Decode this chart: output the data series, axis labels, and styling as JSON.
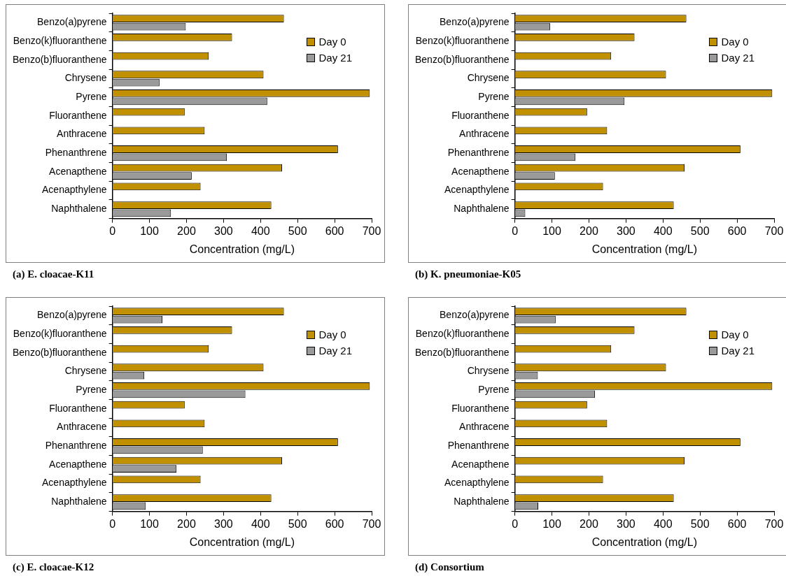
{
  "chart_data": [
    {
      "type": "bar",
      "orientation": "horizontal",
      "title": "(a) E. cloacae-K11",
      "xlabel": "Concentration (mg/L)",
      "categories": [
        "Benzo(a)pyrene",
        "Benzo(k)fluoranthene",
        "Benzo(b)fluoranthene",
        "Chrysene",
        "Pyrene",
        "Fluoranthene",
        "Anthracene",
        "Phenanthrene",
        "Acenapthene",
        "Acenapthylene",
        "Naphthalene"
      ],
      "series": [
        {
          "name": "Day 0",
          "color": "#c09000",
          "values": [
            463,
            323,
            260,
            408,
            695,
            195,
            249,
            609,
            458,
            238,
            429
          ]
        },
        {
          "name": "Day 21",
          "color": "#9a9a9a",
          "values": [
            198,
            0,
            0,
            127,
            418,
            0,
            0,
            309,
            214,
            0,
            158
          ]
        }
      ],
      "xlim": [
        0,
        700
      ],
      "xticks": [
        0,
        100,
        200,
        300,
        400,
        500,
        600,
        700
      ],
      "grid": false,
      "legend": "top right"
    },
    {
      "type": "bar",
      "orientation": "horizontal",
      "title": "(b) K. pneumoniae-K05",
      "xlabel": "Concentration (mg/L)",
      "categories": [
        "Benzo(a)pyrene",
        "Benzo(k)fluoranthene",
        "Benzo(b)fluoranthene",
        "Chrysene",
        "Pyrene",
        "Fluoranthene",
        "Anthracene",
        "Phenanthrene",
        "Acenapthene",
        "Acenapthylene",
        "Naphthalene"
      ],
      "series": [
        {
          "name": "Day 0",
          "color": "#c09000",
          "values": [
            463,
            323,
            260,
            408,
            695,
            195,
            249,
            609,
            458,
            238,
            429
          ]
        },
        {
          "name": "Day 21",
          "color": "#9a9a9a",
          "values": [
            95,
            0,
            0,
            0,
            296,
            0,
            0,
            163,
            108,
            0,
            28
          ]
        }
      ],
      "xlim": [
        0,
        700
      ],
      "xticks": [
        0,
        100,
        200,
        300,
        400,
        500,
        600,
        700
      ],
      "grid": false,
      "legend": "top right"
    },
    {
      "type": "bar",
      "orientation": "horizontal",
      "title": "(c) E. cloacae-K12",
      "xlabel": "Concentration (mg/L)",
      "categories": [
        "Benzo(a)pyrene",
        "Benzo(k)fluoranthene",
        "Benzo(b)fluoranthene",
        "Chrysene",
        "Pyrene",
        "Fluoranthene",
        "Anthracene",
        "Phenanthrene",
        "Acenapthene",
        "Acenapthylene",
        "Naphthalene"
      ],
      "series": [
        {
          "name": "Day 0",
          "color": "#c09000",
          "values": [
            463,
            323,
            260,
            408,
            695,
            195,
            249,
            609,
            458,
            238,
            429
          ]
        },
        {
          "name": "Day 21",
          "color": "#9a9a9a",
          "values": [
            135,
            0,
            0,
            86,
            359,
            0,
            0,
            244,
            173,
            0,
            90
          ]
        }
      ],
      "xlim": [
        0,
        700
      ],
      "xticks": [
        0,
        100,
        200,
        300,
        400,
        500,
        600,
        700
      ],
      "grid": false,
      "legend": "top right"
    },
    {
      "type": "bar",
      "orientation": "horizontal",
      "title": "(d) Consortium",
      "xlabel": "Concentration (mg/L)",
      "categories": [
        "Benzo(a)pyrene",
        "Benzo(k)fluoranthene",
        "Benzo(b)fluoranthene",
        "Chrysene",
        "Pyrene",
        "Fluoranthene",
        "Anthracene",
        "Phenanthrene",
        "Acenapthene",
        "Acenapthylene",
        "Naphthalene"
      ],
      "series": [
        {
          "name": "Day 0",
          "color": "#c09000",
          "values": [
            463,
            323,
            260,
            408,
            695,
            195,
            249,
            609,
            458,
            238,
            429
          ]
        },
        {
          "name": "Day 21",
          "color": "#9a9a9a",
          "values": [
            110,
            0,
            0,
            62,
            216,
            0,
            0,
            0,
            0,
            0,
            63
          ]
        }
      ],
      "xlim": [
        0,
        700
      ],
      "xticks": [
        0,
        100,
        200,
        300,
        400,
        500,
        600,
        700
      ],
      "grid": false,
      "legend": "top right"
    }
  ]
}
